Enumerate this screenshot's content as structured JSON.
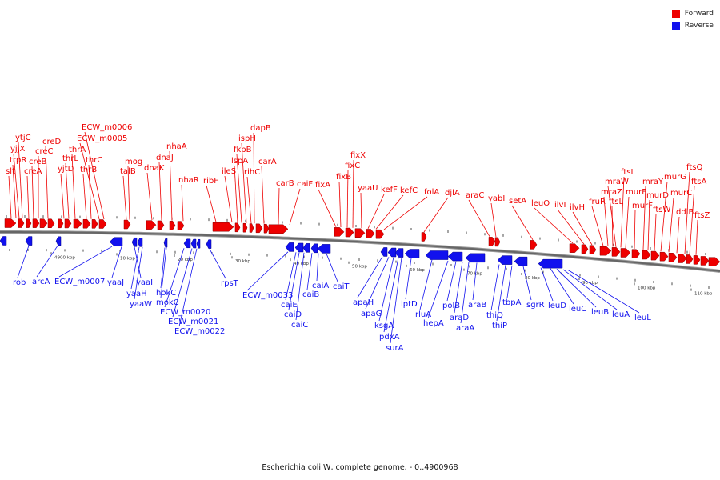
{
  "colors": {
    "forward": "#ee0000",
    "reverse": "#1111ee",
    "backbone": "#666666"
  },
  "legend": {
    "forward": "Forward",
    "reverse": "Reverse"
  },
  "caption": "Escherichia coli W, complete genome. - 0..4900968",
  "ticks": [
    "4900 kbp",
    "10 kbp",
    "20 kbp",
    "30 kbp",
    "40 kbp",
    "50 kbp",
    "60 kbp",
    "70 kbp",
    "80 kbp",
    "90 kbp",
    "100 kbp",
    "110 kbp"
  ],
  "forward_labels": [
    "slt",
    "yjjX",
    "ytjC",
    "trpR",
    "creA",
    "creB",
    "creC",
    "creD",
    "yjtD",
    "thrL",
    "thrA",
    "thrB",
    "thrC",
    "ECW_m0005",
    "ECW_m0006",
    "talB",
    "mog",
    "dnaK",
    "dnaJ",
    "nhaA",
    "nhaR",
    "ribF",
    "ileS",
    "lspA",
    "fkpB",
    "ispH",
    "rihC",
    "dapB",
    "carA",
    "carB",
    "caiF",
    "fixA",
    "fixB",
    "fixC",
    "fixX",
    "yaaU",
    "kefF",
    "kefC",
    "folA",
    "djlA",
    "araC",
    "yabI",
    "setA",
    "leuO",
    "ilvI",
    "ilvH",
    "fruR",
    "mraZ",
    "ftsL",
    "mraW",
    "ftsI",
    "murE",
    "murF",
    "mraY",
    "murD",
    "ftsW",
    "murG",
    "murC",
    "ddlB",
    "ftsQ",
    "ftsA",
    "ftsZ"
  ],
  "reverse_labels": [
    "rob",
    "arcA",
    "ECW_m0007",
    "yaaJ",
    "yaaI",
    "yaaH",
    "yaaW",
    "hokC",
    "mokC",
    "ECW_m0020",
    "ECW_m0021",
    "ECW_m0022",
    "rpsT",
    "ECW_m0033",
    "caiE",
    "caiD",
    "caiC",
    "caiB",
    "caiA",
    "caiT",
    "apaH",
    "apaG",
    "ksgA",
    "pdxA",
    "surA",
    "lptD",
    "rluA",
    "hepA",
    "polB",
    "araD",
    "araA",
    "araB",
    "thiQ",
    "thiP",
    "tbpA",
    "sgrR",
    "leuD",
    "leuC",
    "leuB",
    "leuA",
    "leuL"
  ]
}
